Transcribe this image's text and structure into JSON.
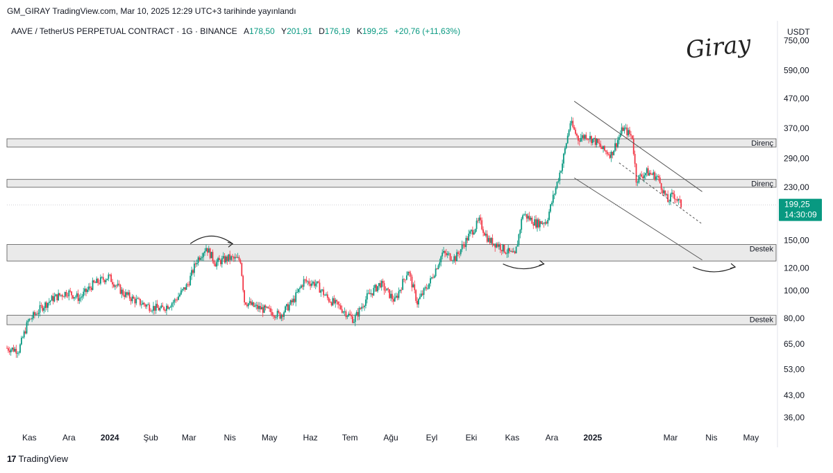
{
  "header": {
    "publish_line": "GM_GIRAY TradingView.com, Mar 10, 2025 12:29 UTC+3 tarihinde yayınlandı"
  },
  "symbol": {
    "name": "AAVE / TetherUS PERPETUAL CONTRACT · 1G · BINANCE",
    "open_label": "A",
    "open": "178,50",
    "high_label": "Y",
    "high": "201,91",
    "low_label": "D",
    "low": "176,19",
    "close_label": "K",
    "close": "199,25",
    "change": "+20,76 (+11,63%)"
  },
  "currency": "USDT",
  "signature": "Giray",
  "branding": {
    "logo_mark": "17",
    "name": "TradingView"
  },
  "price_tag": {
    "price": "199,25",
    "countdown": "14:30:09"
  },
  "colors": {
    "up": "#089981",
    "down": "#f23645",
    "zone_fill": "#e6e6e6",
    "zone_stroke": "#555555",
    "channel": "#555555",
    "price_tag_bg": "#089981"
  },
  "chart_data": {
    "type": "candlestick",
    "y_scale": "log",
    "y_ticks": [
      "750,00",
      "590,00",
      "470,00",
      "370,00",
      "290,00",
      "230,00",
      "150,00",
      "120,00",
      "100,00",
      "80,00",
      "65,00",
      "53,00",
      "43,00",
      "36,00"
    ],
    "y_tick_values": [
      750,
      590,
      470,
      370,
      290,
      230,
      150,
      120,
      100,
      80,
      65,
      53,
      43,
      36
    ],
    "x_ticks": [
      "Kas",
      "Ara",
      "2024",
      "Şub",
      "Mar",
      "Nis",
      "May",
      "Haz",
      "Tem",
      "Ağu",
      "Eyl",
      "Eki",
      "Kas",
      "Ara",
      "2025",
      "Mar",
      "Nis",
      "May"
    ],
    "x_tick_dates": [
      "2023-11-01",
      "2023-12-01",
      "2024-01-01",
      "2024-02-01",
      "2024-03-01",
      "2024-04-01",
      "2024-05-01",
      "2024-06-01",
      "2024-07-01",
      "2024-08-01",
      "2024-09-01",
      "2024-10-01",
      "2024-11-01",
      "2024-12-01",
      "2025-01-01",
      "2025-03-01",
      "2025-04-01",
      "2025-05-01"
    ],
    "x_tick_bold": [
      false,
      false,
      true,
      false,
      false,
      false,
      false,
      false,
      false,
      false,
      false,
      false,
      false,
      false,
      true,
      false,
      false,
      false
    ],
    "x_range": [
      "2023-10-15",
      "2025-05-20"
    ],
    "last_price": 199.25,
    "zones": [
      {
        "label": "Direnç",
        "low": 318,
        "high": 340
      },
      {
        "label": "Direnç",
        "low": 230,
        "high": 245
      },
      {
        "label": "Destek",
        "low": 127,
        "high": 145
      },
      {
        "label": "Destek",
        "low": 76,
        "high": 82
      }
    ],
    "channel": [
      {
        "from": [
          "2024-12-18",
          460
        ],
        "to": [
          "2025-03-25",
          222
        ]
      },
      {
        "from": [
          "2024-12-18",
          248
        ],
        "to": [
          "2025-03-25",
          128
        ]
      }
    ],
    "channel_mid": {
      "from": [
        "2025-01-21",
        280
      ],
      "to": [
        "2025-03-25",
        171
      ]
    },
    "arrows": [
      {
        "from": [
          "2024-03-02",
          146
        ],
        "to": [
          "2024-04-03",
          146
        ],
        "dir": "up"
      },
      {
        "from": [
          "2024-10-25",
          124
        ],
        "to": [
          "2024-11-25",
          124
        ],
        "dir": "down"
      },
      {
        "from": [
          "2025-03-18",
          121
        ],
        "to": [
          "2025-04-19",
          121
        ],
        "dir": "down"
      }
    ],
    "anchors": [
      [
        "2023-10-15",
        63
      ],
      [
        "2023-10-25",
        62
      ],
      [
        "2023-11-01",
        78
      ],
      [
        "2023-11-12",
        88
      ],
      [
        "2023-11-20",
        94
      ],
      [
        "2023-12-01",
        99
      ],
      [
        "2023-12-10",
        94
      ],
      [
        "2023-12-20",
        105
      ],
      [
        "2024-01-01",
        112
      ],
      [
        "2024-01-12",
        98
      ],
      [
        "2024-01-22",
        92
      ],
      [
        "2024-02-01",
        88
      ],
      [
        "2024-02-10",
        86
      ],
      [
        "2024-02-20",
        92
      ],
      [
        "2024-03-01",
        105
      ],
      [
        "2024-03-08",
        128
      ],
      [
        "2024-03-15",
        142
      ],
      [
        "2024-03-22",
        125
      ],
      [
        "2024-04-01",
        130
      ],
      [
        "2024-04-10",
        128
      ],
      [
        "2024-04-13",
        92
      ],
      [
        "2024-04-20",
        88
      ],
      [
        "2024-05-01",
        85
      ],
      [
        "2024-05-10",
        82
      ],
      [
        "2024-05-20",
        92
      ],
      [
        "2024-05-28",
        108
      ],
      [
        "2024-06-06",
        106
      ],
      [
        "2024-06-15",
        94
      ],
      [
        "2024-06-25",
        87
      ],
      [
        "2024-07-05",
        79
      ],
      [
        "2024-07-15",
        95
      ],
      [
        "2024-07-25",
        106
      ],
      [
        "2024-08-05",
        92
      ],
      [
        "2024-08-15",
        118
      ],
      [
        "2024-08-22",
        91
      ],
      [
        "2024-09-01",
        108
      ],
      [
        "2024-09-10",
        135
      ],
      [
        "2024-09-20",
        130
      ],
      [
        "2024-10-01",
        158
      ],
      [
        "2024-10-08",
        175
      ],
      [
        "2024-10-15",
        150
      ],
      [
        "2024-10-22",
        145
      ],
      [
        "2024-10-28",
        138
      ],
      [
        "2024-11-04",
        132
      ],
      [
        "2024-11-10",
        186
      ],
      [
        "2024-11-20",
        172
      ],
      [
        "2024-11-28",
        175
      ],
      [
        "2024-12-04",
        220
      ],
      [
        "2024-12-10",
        280
      ],
      [
        "2024-12-16",
        388
      ],
      [
        "2024-12-22",
        340
      ],
      [
        "2024-12-28",
        350
      ],
      [
        "2025-01-05",
        330
      ],
      [
        "2025-01-10",
        310
      ],
      [
        "2025-01-16",
        300
      ],
      [
        "2025-01-25",
        370
      ],
      [
        "2025-02-01",
        345
      ],
      [
        "2025-02-04",
        245
      ],
      [
        "2025-02-12",
        260
      ],
      [
        "2025-02-20",
        250
      ],
      [
        "2025-02-28",
        205
      ],
      [
        "2025-03-04",
        218
      ],
      [
        "2025-03-10",
        199
      ]
    ]
  }
}
